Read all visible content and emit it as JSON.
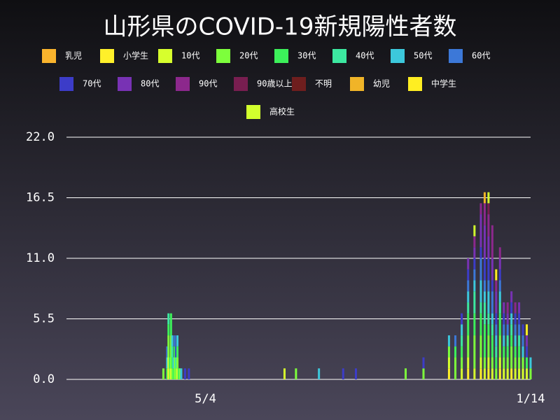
{
  "chart_data": {
    "type": "stacked_bar",
    "title": "山形県のCOVID-19新規陽性者数",
    "x": [
      76,
      79,
      80,
      81,
      82,
      83,
      84,
      85,
      86,
      87,
      88,
      89,
      90,
      93,
      96,
      110,
      171,
      180,
      198,
      217,
      227,
      266,
      280,
      284,
      300,
      305,
      310,
      315,
      320,
      325,
      328,
      331,
      334,
      337,
      340,
      343,
      346,
      349,
      352,
      355,
      358,
      361,
      364
    ],
    "xlim": [
      0,
      364
    ],
    "xticks": [
      {
        "value": 109,
        "label": "5/4"
      },
      {
        "value": 364,
        "label": "1/14"
      }
    ],
    "ylim": [
      0,
      22
    ],
    "yticks": [
      {
        "value": 0,
        "label": "0.0"
      },
      5.5,
      {
        "value": 11,
        "label": "11.0"
      },
      16.5,
      {
        "value": 22,
        "label": "22.0"
      }
    ],
    "grid": true,
    "series": [
      {
        "name": "乳児",
        "color": "#f9b42d",
        "values": [
          0,
          0,
          0,
          0,
          0,
          0,
          0,
          0,
          0,
          0,
          0,
          0,
          0,
          0,
          0,
          0,
          0,
          0,
          0,
          0,
          0,
          0,
          0,
          0,
          0,
          0,
          0,
          0,
          0,
          0,
          0,
          0,
          0,
          0,
          0,
          0,
          0,
          0,
          0,
          0,
          0,
          0,
          0
        ]
      },
      {
        "name": "小学生",
        "color": "#fff02a",
        "values": [
          0,
          0,
          1,
          0,
          0,
          0,
          0,
          0,
          0,
          0,
          0,
          0,
          0,
          0,
          0,
          0,
          0,
          0,
          0,
          0,
          0,
          0,
          0,
          0,
          1,
          0,
          0,
          1,
          0,
          1,
          0,
          1,
          0,
          0,
          1,
          0,
          0,
          1,
          0,
          0,
          0,
          0,
          0
        ]
      },
      {
        "name": "10代",
        "color": "#d7ff2d",
        "values": [
          0,
          0,
          1,
          0,
          1,
          0,
          0,
          0,
          0,
          1,
          0,
          0,
          0,
          0,
          0,
          0,
          1,
          0,
          0,
          0,
          0,
          0,
          0,
          0,
          1,
          0,
          1,
          1,
          1,
          1,
          1,
          1,
          1,
          0,
          1,
          1,
          1,
          0,
          1,
          1,
          1,
          1,
          0
        ]
      },
      {
        "name": "20代",
        "color": "#7dff3c",
        "values": [
          1,
          0,
          2,
          1,
          3,
          1,
          0,
          2,
          1,
          1,
          0,
          1,
          0,
          0,
          0,
          0,
          0,
          1,
          0,
          0,
          0,
          1,
          1,
          0,
          1,
          2,
          1,
          2,
          3,
          2,
          1,
          2,
          1,
          1,
          2,
          1,
          1,
          2,
          1,
          1,
          1,
          0,
          1
        ]
      },
      {
        "name": "30代",
        "color": "#3cf05a",
        "values": [
          0,
          1,
          1,
          1,
          2,
          1,
          1,
          1,
          0,
          1,
          1,
          0,
          0,
          0,
          0,
          0,
          0,
          0,
          0,
          0,
          0,
          0,
          0,
          0,
          0,
          1,
          1,
          2,
          2,
          2,
          3,
          1,
          2,
          1,
          2,
          1,
          1,
          1,
          1,
          1,
          0,
          1,
          0
        ]
      },
      {
        "name": "40代",
        "color": "#3ce8a0",
        "values": [
          0,
          0,
          1,
          0,
          0,
          1,
          0,
          0,
          1,
          0,
          0,
          0,
          0,
          0,
          0,
          0,
          0,
          0,
          0,
          0,
          0,
          0,
          0,
          0,
          0,
          0,
          1,
          1,
          2,
          1,
          2,
          1,
          1,
          1,
          1,
          0,
          1,
          1,
          0,
          1,
          0,
          0,
          0
        ]
      },
      {
        "name": "50代",
        "color": "#3cc8dc",
        "values": [
          0,
          1,
          0,
          0,
          0,
          1,
          1,
          0,
          0,
          1,
          0,
          0,
          1,
          0,
          0,
          0,
          0,
          0,
          1,
          0,
          0,
          0,
          0,
          0,
          1,
          0,
          1,
          1,
          1,
          2,
          1,
          2,
          1,
          1,
          1,
          1,
          0,
          1,
          1,
          0,
          1,
          0,
          1
        ]
      },
      {
        "name": "60代",
        "color": "#3c78d8",
        "values": [
          0,
          1,
          0,
          0,
          0,
          0,
          0,
          1,
          0,
          0,
          0,
          0,
          0,
          0,
          0,
          0,
          0,
          0,
          0,
          0,
          0,
          0,
          0,
          0,
          0,
          1,
          0,
          1,
          1,
          2,
          1,
          1,
          2,
          1,
          1,
          1,
          1,
          0,
          1,
          1,
          1,
          0,
          0
        ]
      },
      {
        "name": "70代",
        "color": "#3c3cc8",
        "values": [
          0,
          0,
          0,
          0,
          0,
          0,
          0,
          0,
          1,
          0,
          0,
          0,
          0,
          1,
          1,
          0,
          0,
          0,
          0,
          1,
          1,
          0,
          1,
          0,
          0,
          0,
          1,
          1,
          1,
          1,
          2,
          2,
          1,
          1,
          1,
          1,
          0,
          1,
          1,
          1,
          1,
          1,
          0
        ]
      },
      {
        "name": "80代",
        "color": "#7832b4",
        "values": [
          0,
          0,
          0,
          0,
          0,
          0,
          0,
          0,
          0,
          0,
          0,
          0,
          0,
          0,
          0,
          0,
          0,
          0,
          0,
          0,
          0,
          0,
          0,
          0,
          0,
          0,
          0,
          1,
          1,
          3,
          3,
          2,
          2,
          2,
          1,
          1,
          1,
          1,
          0,
          1,
          0,
          1,
          0
        ]
      },
      {
        "name": "90代",
        "color": "#8c288c",
        "values": [
          0,
          0,
          0,
          0,
          0,
          0,
          0,
          0,
          0,
          0,
          0,
          0,
          0,
          0,
          0,
          0,
          0,
          0,
          0,
          0,
          0,
          0,
          0,
          0,
          0,
          0,
          0,
          0,
          1,
          1,
          2,
          2,
          3,
          1,
          1,
          0,
          1,
          0,
          1,
          0,
          0,
          0,
          0
        ]
      },
      {
        "name": "90歳以上",
        "color": "#781e50",
        "values": [
          0,
          0,
          0,
          0,
          0,
          0,
          0,
          0,
          0,
          0,
          0,
          0,
          0,
          0,
          0,
          0,
          0,
          0,
          0,
          0,
          0,
          0,
          0,
          0,
          0,
          0,
          0,
          0,
          0,
          0,
          0,
          1,
          0,
          0,
          0,
          0,
          0,
          0,
          0,
          0,
          0,
          0,
          0
        ]
      },
      {
        "name": "不明",
        "color": "#6e1e1e",
        "values": [
          0,
          0,
          0,
          0,
          0,
          0,
          0,
          0,
          0,
          0,
          0,
          0,
          0,
          0,
          0,
          0,
          0,
          0,
          0,
          0,
          0,
          0,
          0,
          0,
          0,
          0,
          0,
          0,
          0,
          0,
          0,
          0,
          0,
          0,
          0,
          0,
          0,
          0,
          0,
          0,
          0,
          0,
          0
        ]
      },
      {
        "name": "幼児",
        "color": "#f0b428",
        "values": [
          0,
          0,
          0,
          0,
          0,
          0,
          0,
          0,
          0,
          0,
          0,
          0,
          0,
          0,
          0,
          0,
          0,
          0,
          0,
          0,
          0,
          0,
          0,
          0,
          0,
          0,
          0,
          0,
          0,
          0,
          1,
          0,
          0,
          0,
          0,
          0,
          0,
          0,
          0,
          0,
          0,
          0,
          0
        ]
      },
      {
        "name": "中学生",
        "color": "#ffee22",
        "values": [
          0,
          0,
          0,
          0,
          0,
          0,
          0,
          0,
          0,
          0,
          0,
          0,
          0,
          0,
          0,
          0,
          0,
          0,
          0,
          0,
          0,
          0,
          0,
          0,
          0,
          0,
          0,
          0,
          0,
          0,
          0,
          0,
          0,
          1,
          0,
          0,
          0,
          0,
          0,
          0,
          0,
          1,
          0
        ]
      },
      {
        "name": "高校生",
        "color": "#d2ff2d",
        "values": [
          0,
          0,
          0,
          0,
          0,
          0,
          0,
          0,
          0,
          0,
          0,
          0,
          0,
          0,
          0,
          0,
          0,
          0,
          0,
          0,
          0,
          0,
          0,
          0,
          0,
          0,
          0,
          0,
          1,
          0,
          0,
          1,
          0,
          0,
          0,
          0,
          0,
          0,
          0,
          0,
          0,
          0,
          0
        ]
      }
    ]
  }
}
